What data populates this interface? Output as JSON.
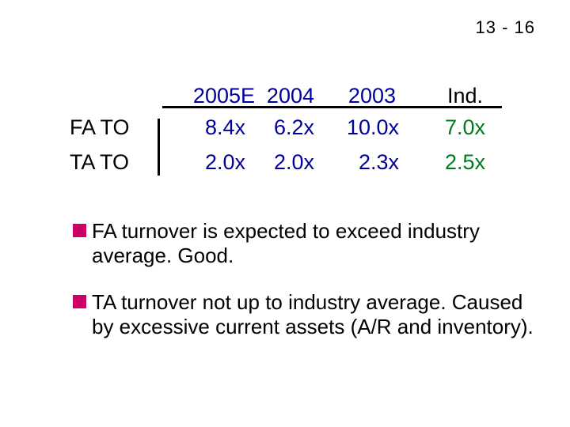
{
  "page_number": "13 - 16",
  "table": {
    "headers": [
      "2005E",
      "2004",
      "2003",
      "Ind."
    ],
    "rows": [
      {
        "label": "FA TO",
        "values": [
          "8.4x",
          "6.2x",
          "10.0x",
          "7.0x"
        ]
      },
      {
        "label": "TA TO",
        "values": [
          "2.0x",
          "2.0x",
          "2.3x",
          "2.5x"
        ]
      }
    ]
  },
  "bullets": [
    "FA turnover is expected to exceed industry average.  Good.",
    "TA turnover not up to industry average.  Caused by excessive current assets (A/R and inventory)."
  ],
  "colors": {
    "values": "#000099",
    "industry": "#007a1f",
    "bullet_marker": "#cc0066"
  }
}
